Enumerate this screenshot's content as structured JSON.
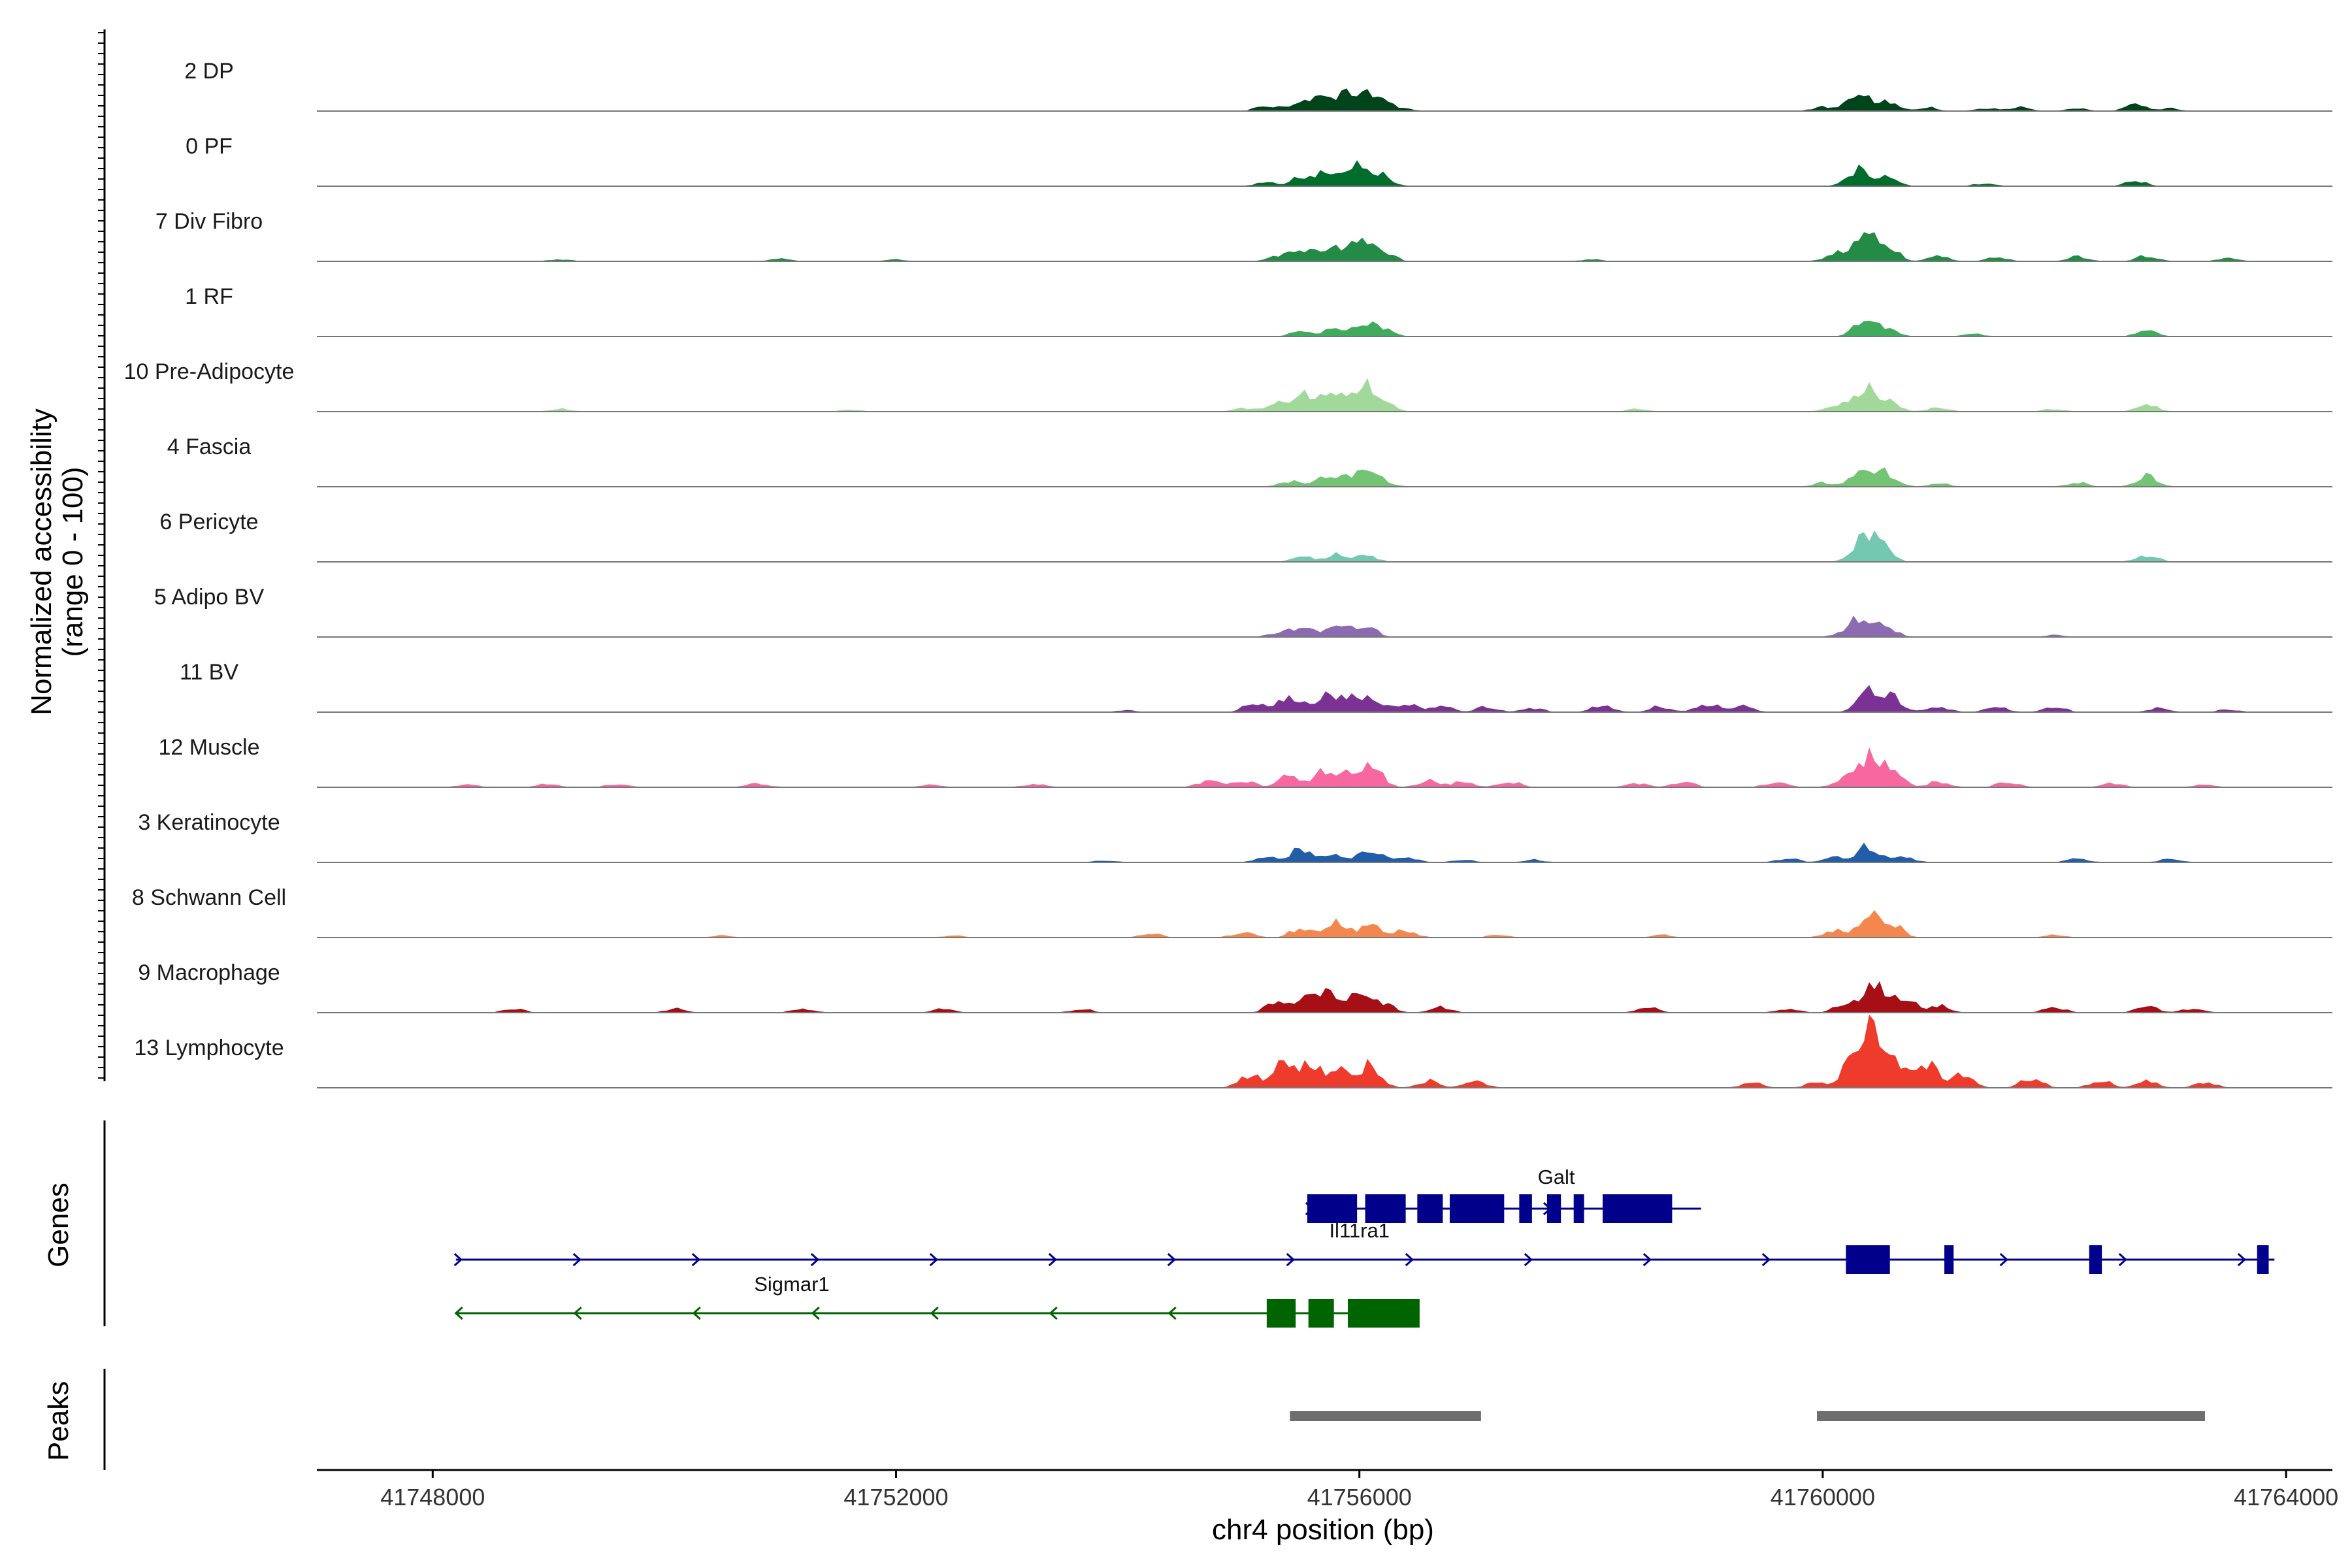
{
  "chart_data": {
    "type": "area",
    "title": "",
    "ylabel_line1": "Normalized accessibility",
    "ylabel_line2": "(range 0 - 100)",
    "xlabel": "chr4 position (bp)",
    "xlim": [
      41747000,
      41764400
    ],
    "xticks": [
      41748000,
      41752000,
      41756000,
      41760000,
      41764000
    ],
    "xtick_labels": [
      "41748000",
      "41752000",
      "41756000",
      "41760000",
      "41764000"
    ],
    "ylim": [
      0,
      100
    ],
    "tracks": [
      {
        "name": "2 DP",
        "color": "#00441b",
        "peaks": [
          [
            41755200,
            8
          ],
          [
            41755500,
            14
          ],
          [
            41755700,
            18
          ],
          [
            41755900,
            22
          ],
          [
            41756050,
            20
          ],
          [
            41756200,
            12
          ],
          [
            41756400,
            3
          ],
          [
            41760000,
            6
          ],
          [
            41760300,
            25
          ],
          [
            41760550,
            14
          ],
          [
            41760900,
            5
          ],
          [
            41761400,
            4
          ],
          [
            41761700,
            6
          ],
          [
            41762200,
            4
          ],
          [
            41762700,
            10
          ],
          [
            41763000,
            4
          ]
        ]
      },
      {
        "name": "0 PF",
        "color": "#006d2c",
        "peaks": [
          [
            41755200,
            6
          ],
          [
            41755500,
            12
          ],
          [
            41755700,
            16
          ],
          [
            41755900,
            20
          ],
          [
            41756050,
            18
          ],
          [
            41756200,
            12
          ],
          [
            41760300,
            24
          ],
          [
            41760550,
            14
          ],
          [
            41761400,
            4
          ],
          [
            41762700,
            8
          ]
        ]
      },
      {
        "name": "7 Div Fibro",
        "color": "#238b45",
        "peaks": [
          [
            41749100,
            3
          ],
          [
            41751000,
            4
          ],
          [
            41752000,
            3
          ],
          [
            41755300,
            8
          ],
          [
            41755500,
            14
          ],
          [
            41755700,
            16
          ],
          [
            41755900,
            18
          ],
          [
            41756050,
            20
          ],
          [
            41756200,
            14
          ],
          [
            41758000,
            3
          ],
          [
            41760100,
            10
          ],
          [
            41760350,
            40
          ],
          [
            41760550,
            22
          ],
          [
            41761000,
            8
          ],
          [
            41761500,
            6
          ],
          [
            41762200,
            7
          ],
          [
            41762800,
            8
          ],
          [
            41763500,
            5
          ]
        ]
      },
      {
        "name": "1 RF",
        "color": "#41ab5d",
        "peaks": [
          [
            41755500,
            8
          ],
          [
            41755800,
            12
          ],
          [
            41756050,
            16
          ],
          [
            41756200,
            10
          ],
          [
            41760350,
            22
          ],
          [
            41760550,
            12
          ],
          [
            41761300,
            4
          ],
          [
            41762800,
            9
          ]
        ]
      },
      {
        "name": "10 Pre-Adipocyte",
        "color": "#a1d99b",
        "peaks": [
          [
            41749100,
            4
          ],
          [
            41751600,
            3
          ],
          [
            41755000,
            5
          ],
          [
            41755300,
            12
          ],
          [
            41755500,
            20
          ],
          [
            41755700,
            22
          ],
          [
            41755900,
            20
          ],
          [
            41756050,
            26
          ],
          [
            41756200,
            14
          ],
          [
            41758400,
            4
          ],
          [
            41760100,
            8
          ],
          [
            41760350,
            32
          ],
          [
            41760550,
            18
          ],
          [
            41761000,
            6
          ],
          [
            41762000,
            4
          ],
          [
            41762800,
            10
          ]
        ]
      },
      {
        "name": "4 Fascia",
        "color": "#74c476",
        "peaks": [
          [
            41755400,
            8
          ],
          [
            41755700,
            14
          ],
          [
            41755900,
            10
          ],
          [
            41756050,
            20
          ],
          [
            41756200,
            8
          ],
          [
            41760000,
            6
          ],
          [
            41760350,
            26
          ],
          [
            41760550,
            18
          ],
          [
            41761000,
            5
          ],
          [
            41762200,
            6
          ],
          [
            41762800,
            16
          ]
        ]
      },
      {
        "name": "6 Pericyte",
        "color": "#74c7b0",
        "peaks": [
          [
            41755500,
            8
          ],
          [
            41755800,
            10
          ],
          [
            41756050,
            10
          ],
          [
            41760350,
            34
          ],
          [
            41760500,
            24
          ],
          [
            41762800,
            10
          ]
        ]
      },
      {
        "name": "5 Adipo BV",
        "color": "#8c6bb1",
        "peaks": [
          [
            41755300,
            6
          ],
          [
            41755500,
            14
          ],
          [
            41755800,
            18
          ],
          [
            41756050,
            16
          ],
          [
            41760200,
            8
          ],
          [
            41760350,
            24
          ],
          [
            41760550,
            14
          ],
          [
            41762000,
            3
          ]
        ]
      },
      {
        "name": "11 BV",
        "color": "#7b3294",
        "peaks": [
          [
            41754000,
            3
          ],
          [
            41755100,
            14
          ],
          [
            41755400,
            22
          ],
          [
            41755700,
            24
          ],
          [
            41755900,
            18
          ],
          [
            41756100,
            20
          ],
          [
            41756400,
            12
          ],
          [
            41756700,
            10
          ],
          [
            41757100,
            8
          ],
          [
            41757500,
            6
          ],
          [
            41758100,
            10
          ],
          [
            41758600,
            8
          ],
          [
            41759000,
            12
          ],
          [
            41759300,
            10
          ],
          [
            41760400,
            34
          ],
          [
            41760600,
            20
          ],
          [
            41761000,
            8
          ],
          [
            41761500,
            8
          ],
          [
            41762000,
            8
          ],
          [
            41762900,
            6
          ],
          [
            41763500,
            4
          ]
        ]
      },
      {
        "name": "12 Muscle",
        "color": "#f768a1",
        "peaks": [
          [
            41748300,
            4
          ],
          [
            41749000,
            5
          ],
          [
            41749600,
            5
          ],
          [
            41750800,
            6
          ],
          [
            41752300,
            4
          ],
          [
            41753200,
            5
          ],
          [
            41754700,
            10
          ],
          [
            41755000,
            10
          ],
          [
            41755400,
            18
          ],
          [
            41755700,
            22
          ],
          [
            41755900,
            16
          ],
          [
            41756100,
            32
          ],
          [
            41756600,
            10
          ],
          [
            41756900,
            8
          ],
          [
            41757300,
            8
          ],
          [
            41758400,
            6
          ],
          [
            41758800,
            8
          ],
          [
            41759600,
            8
          ],
          [
            41760200,
            14
          ],
          [
            41760400,
            42
          ],
          [
            41760600,
            24
          ],
          [
            41761000,
            8
          ],
          [
            41761600,
            8
          ],
          [
            41762500,
            6
          ],
          [
            41763300,
            4
          ]
        ]
      },
      {
        "name": "3 Keratinocyte",
        "color": "#225ea8",
        "peaks": [
          [
            41753800,
            3
          ],
          [
            41755200,
            8
          ],
          [
            41755500,
            20
          ],
          [
            41755800,
            12
          ],
          [
            41756100,
            18
          ],
          [
            41756400,
            8
          ],
          [
            41756900,
            4
          ],
          [
            41757500,
            4
          ],
          [
            41759700,
            6
          ],
          [
            41760100,
            8
          ],
          [
            41760400,
            24
          ],
          [
            41760700,
            8
          ],
          [
            41762200,
            6
          ],
          [
            41763000,
            5
          ]
        ]
      },
      {
        "name": "8 Schwann Cell",
        "color": "#f4874e",
        "peaks": [
          [
            41750500,
            3
          ],
          [
            41752500,
            3
          ],
          [
            41754200,
            6
          ],
          [
            41755000,
            8
          ],
          [
            41755500,
            14
          ],
          [
            41755800,
            22
          ],
          [
            41756100,
            20
          ],
          [
            41756400,
            10
          ],
          [
            41757200,
            4
          ],
          [
            41758600,
            4
          ],
          [
            41760100,
            10
          ],
          [
            41760400,
            32
          ],
          [
            41760600,
            18
          ],
          [
            41762000,
            4
          ]
        ]
      },
      {
        "name": "9 Macrophage",
        "color": "#a50f15",
        "peaks": [
          [
            41748700,
            6
          ],
          [
            41750100,
            6
          ],
          [
            41751200,
            6
          ],
          [
            41752400,
            6
          ],
          [
            41753600,
            5
          ],
          [
            41755300,
            18
          ],
          [
            41755600,
            32
          ],
          [
            41755800,
            20
          ],
          [
            41756000,
            24
          ],
          [
            41756200,
            14
          ],
          [
            41756700,
            8
          ],
          [
            41758500,
            8
          ],
          [
            41759700,
            6
          ],
          [
            41760200,
            14
          ],
          [
            41760450,
            40
          ],
          [
            41760700,
            22
          ],
          [
            41761000,
            10
          ],
          [
            41762000,
            8
          ],
          [
            41762800,
            10
          ],
          [
            41763200,
            6
          ]
        ]
      },
      {
        "name": "13 Lymphocyte",
        "color": "#ef3b2c",
        "peaks": [
          [
            41755050,
            18
          ],
          [
            41755350,
            40
          ],
          [
            41755600,
            32
          ],
          [
            41755850,
            26
          ],
          [
            41756100,
            30
          ],
          [
            41756600,
            10
          ],
          [
            41757000,
            10
          ],
          [
            41759400,
            8
          ],
          [
            41759950,
            8
          ],
          [
            41760250,
            30
          ],
          [
            41760400,
            80
          ],
          [
            41760600,
            44
          ],
          [
            41760900,
            38
          ],
          [
            41761200,
            20
          ],
          [
            41761800,
            14
          ],
          [
            41762400,
            10
          ],
          [
            41762800,
            10
          ],
          [
            41763300,
            8
          ]
        ]
      }
    ],
    "genes": [
      {
        "name": "Galt",
        "strand": "+",
        "start": 41755550,
        "end": 41758950,
        "exons": [
          [
            41755550,
            41755980
          ],
          [
            41756050,
            41756400
          ],
          [
            41756500,
            41756720
          ],
          [
            41756780,
            41757250
          ],
          [
            41757380,
            41757490
          ],
          [
            41757620,
            41757740
          ],
          [
            41757850,
            41757940
          ],
          [
            41758100,
            41758700
          ]
        ]
      },
      {
        "name": "Il11ra1",
        "strand": "+",
        "start": 41748200,
        "end": 41763900,
        "exons": [
          [
            41760200,
            41760580
          ],
          [
            41761050,
            41761130
          ],
          [
            41762300,
            41762410
          ],
          [
            41763750,
            41763850
          ]
        ]
      },
      {
        "name": "Sigmar1",
        "strand": "-",
        "start": 41748200,
        "end": 41756100,
        "exons": [
          [
            41755200,
            41755450
          ],
          [
            41755560,
            41755780
          ],
          [
            41755900,
            41756520
          ]
        ]
      }
    ],
    "peaks_regions": [
      [
        41755400,
        41757050
      ],
      [
        41759950,
        41763300
      ]
    ],
    "panel_labels": {
      "genes": "Genes",
      "peaks": "Peaks"
    },
    "colors": {
      "gene_plus": "#00008b",
      "gene_minus": "#006400",
      "peak_bar": "#6e6e6e",
      "baseline": "#777777"
    }
  }
}
